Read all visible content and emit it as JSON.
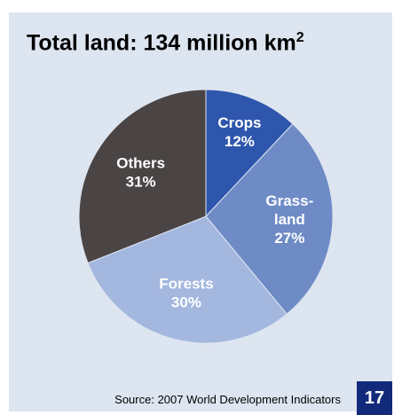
{
  "header": {
    "title_text": "Total land: 134 million km",
    "title_sup": "2"
  },
  "chart_data": {
    "type": "pie",
    "slices": [
      {
        "label": [
          "Crops"
        ],
        "value": 12,
        "pct": "12%",
        "color": "#2e56ad",
        "label_color": "#ffffff"
      },
      {
        "label": [
          "Grass-",
          "land"
        ],
        "value": 27,
        "pct": "27%",
        "color": "#6e8bc6",
        "label_color": "#ffffff"
      },
      {
        "label": [
          "Forests"
        ],
        "value": 30,
        "pct": "30%",
        "color": "#a3b7df",
        "label_color": "#ffffff"
      },
      {
        "label": [
          "Others"
        ],
        "value": 31,
        "pct": "31%",
        "color": "#4a4444",
        "label_color": "#ffffff"
      }
    ],
    "start_angle_deg": 0,
    "direction": "clockwise"
  },
  "footer": {
    "source": "Source: 2007 World Development Indicators",
    "page_number": "17"
  }
}
